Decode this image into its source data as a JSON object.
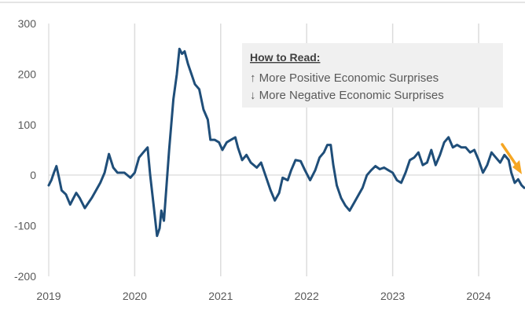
{
  "chart_data": {
    "type": "line",
    "title": "",
    "xlabel": "",
    "ylabel": "",
    "x_ticks": [
      "2019",
      "2020",
      "2021",
      "2022",
      "2023",
      "2024"
    ],
    "y_ticks": [
      "300",
      "200",
      "100",
      "0",
      "-100",
      "-200"
    ],
    "ylim": [
      -200,
      300
    ],
    "xlim": [
      2019.0,
      2024.55
    ],
    "grid": "vertical gridlines at year ticks",
    "series": [
      {
        "color": "#1f4e79",
        "points": [
          [
            2019.0,
            -20
          ],
          [
            2019.03,
            -10
          ],
          [
            2019.06,
            5
          ],
          [
            2019.09,
            18
          ],
          [
            2019.12,
            -5
          ],
          [
            2019.15,
            -30
          ],
          [
            2019.2,
            -38
          ],
          [
            2019.25,
            -58
          ],
          [
            2019.28,
            -48
          ],
          [
            2019.32,
            -35
          ],
          [
            2019.36,
            -45
          ],
          [
            2019.42,
            -65
          ],
          [
            2019.5,
            -45
          ],
          [
            2019.55,
            -30
          ],
          [
            2019.6,
            -15
          ],
          [
            2019.65,
            5
          ],
          [
            2019.7,
            42
          ],
          [
            2019.75,
            15
          ],
          [
            2019.8,
            5
          ],
          [
            2019.88,
            5
          ],
          [
            2019.95,
            -5
          ],
          [
            2020.0,
            5
          ],
          [
            2020.05,
            35
          ],
          [
            2020.1,
            45
          ],
          [
            2020.15,
            55
          ],
          [
            2020.18,
            0
          ],
          [
            2020.22,
            -60
          ],
          [
            2020.26,
            -120
          ],
          [
            2020.29,
            -105
          ],
          [
            2020.31,
            -70
          ],
          [
            2020.34,
            -90
          ],
          [
            2020.37,
            -20
          ],
          [
            2020.4,
            50
          ],
          [
            2020.45,
            150
          ],
          [
            2020.49,
            200
          ],
          [
            2020.52,
            250
          ],
          [
            2020.55,
            240
          ],
          [
            2020.58,
            245
          ],
          [
            2020.62,
            220
          ],
          [
            2020.66,
            200
          ],
          [
            2020.7,
            180
          ],
          [
            2020.75,
            170
          ],
          [
            2020.8,
            130
          ],
          [
            2020.85,
            110
          ],
          [
            2020.88,
            70
          ],
          [
            2020.93,
            70
          ],
          [
            2020.98,
            65
          ],
          [
            2021.02,
            50
          ],
          [
            2021.07,
            65
          ],
          [
            2021.12,
            70
          ],
          [
            2021.17,
            75
          ],
          [
            2021.2,
            55
          ],
          [
            2021.25,
            30
          ],
          [
            2021.3,
            40
          ],
          [
            2021.35,
            25
          ],
          [
            2021.42,
            15
          ],
          [
            2021.47,
            25
          ],
          [
            2021.52,
            0
          ],
          [
            2021.58,
            -30
          ],
          [
            2021.63,
            -50
          ],
          [
            2021.68,
            -35
          ],
          [
            2021.72,
            -5
          ],
          [
            2021.78,
            -10
          ],
          [
            2021.82,
            10
          ],
          [
            2021.87,
            30
          ],
          [
            2021.93,
            28
          ],
          [
            2021.98,
            10
          ],
          [
            2022.04,
            -10
          ],
          [
            2022.1,
            10
          ],
          [
            2022.15,
            35
          ],
          [
            2022.2,
            45
          ],
          [
            2022.24,
            60
          ],
          [
            2022.28,
            60
          ],
          [
            2022.31,
            20
          ],
          [
            2022.35,
            -20
          ],
          [
            2022.4,
            -45
          ],
          [
            2022.45,
            -60
          ],
          [
            2022.5,
            -70
          ],
          [
            2022.55,
            -55
          ],
          [
            2022.6,
            -40
          ],
          [
            2022.65,
            -25
          ],
          [
            2022.7,
            0
          ],
          [
            2022.75,
            10
          ],
          [
            2022.8,
            18
          ],
          [
            2022.85,
            12
          ],
          [
            2022.9,
            15
          ],
          [
            2022.95,
            10
          ],
          [
            2023.0,
            5
          ],
          [
            2023.05,
            -10
          ],
          [
            2023.1,
            -15
          ],
          [
            2023.15,
            5
          ],
          [
            2023.2,
            30
          ],
          [
            2023.25,
            35
          ],
          [
            2023.3,
            45
          ],
          [
            2023.35,
            20
          ],
          [
            2023.4,
            25
          ],
          [
            2023.45,
            50
          ],
          [
            2023.5,
            20
          ],
          [
            2023.55,
            40
          ],
          [
            2023.6,
            65
          ],
          [
            2023.65,
            75
          ],
          [
            2023.7,
            55
          ],
          [
            2023.75,
            60
          ],
          [
            2023.8,
            55
          ],
          [
            2023.85,
            55
          ],
          [
            2023.9,
            45
          ],
          [
            2023.95,
            50
          ],
          [
            2024.0,
            30
          ],
          [
            2024.05,
            5
          ],
          [
            2024.1,
            20
          ],
          [
            2024.15,
            45
          ],
          [
            2024.2,
            35
          ],
          [
            2024.25,
            25
          ],
          [
            2024.3,
            40
          ],
          [
            2024.35,
            30
          ],
          [
            2024.38,
            5
          ],
          [
            2024.42,
            -15
          ],
          [
            2024.46,
            -8
          ],
          [
            2024.5,
            -20
          ],
          [
            2024.53,
            -25
          ]
        ]
      }
    ],
    "annotations": {
      "legend_title": "How to Read:",
      "legend_items": [
        "↑ More Positive Economic Surprises",
        "↓ More Negative Economic Surprises"
      ],
      "trend_arrow_color": "#f5a623",
      "trend_arrow_direction": "down",
      "legend_placement": "top-right"
    }
  }
}
